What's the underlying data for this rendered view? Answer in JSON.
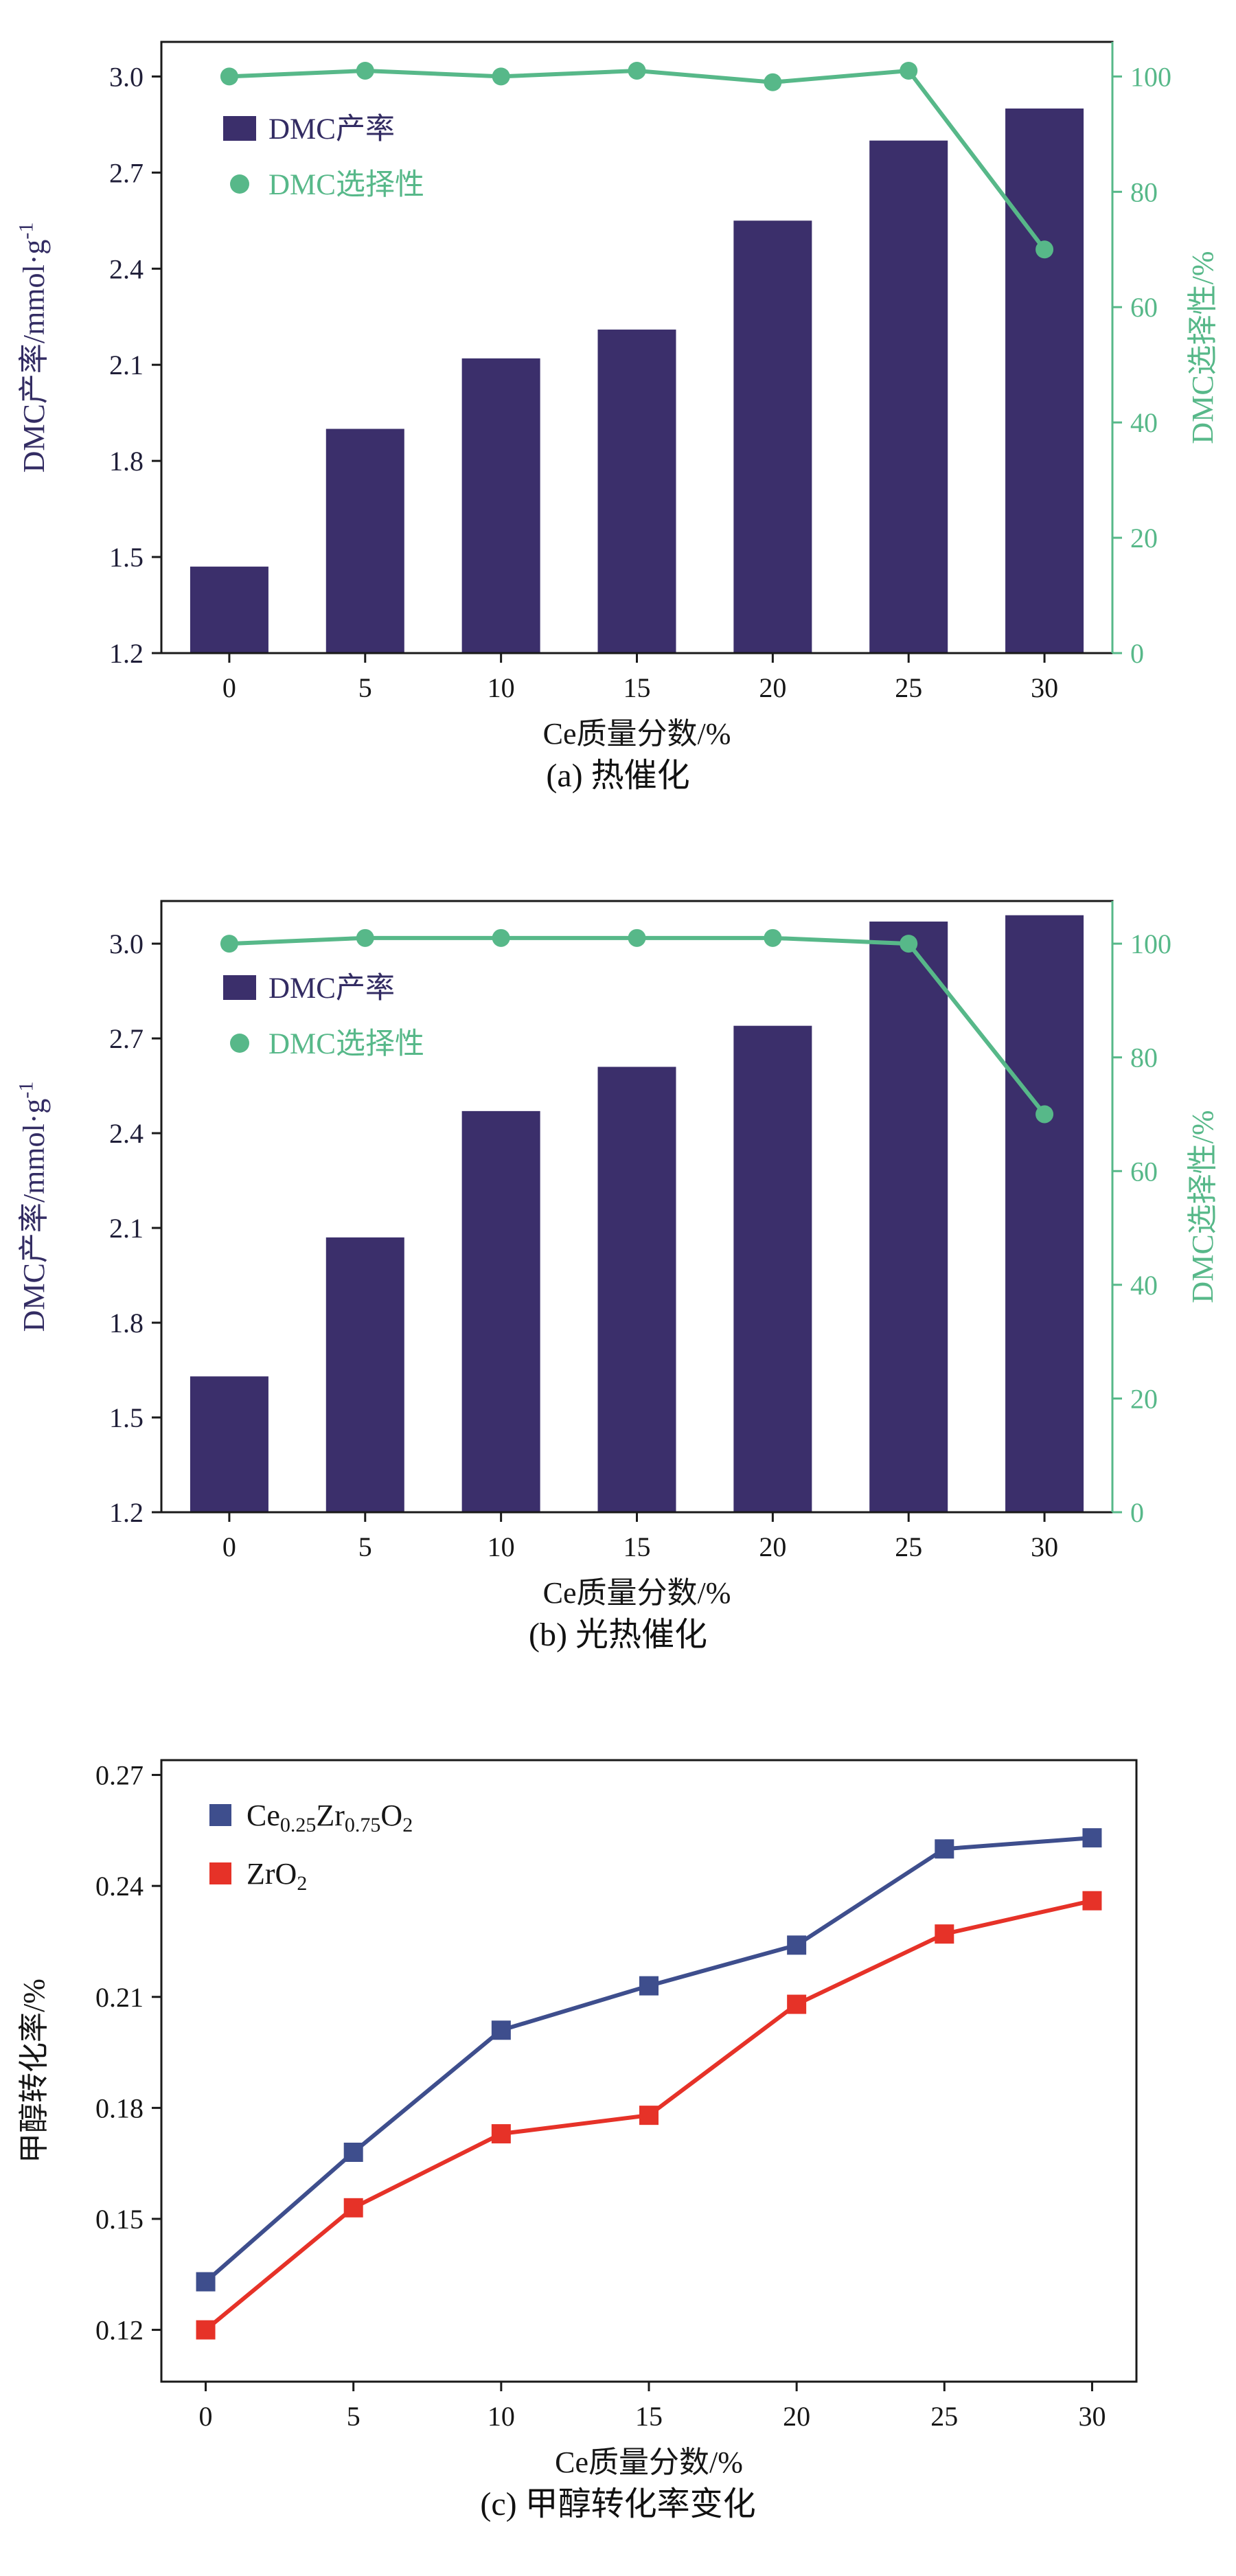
{
  "figure": {
    "background": "#ffffff"
  },
  "chart_data": [
    {
      "id": "a",
      "type": "bar",
      "caption": "(a) 热催化",
      "xlabel": "Ce质量分数/%",
      "categories": [
        0,
        5,
        10,
        15,
        20,
        25,
        30
      ],
      "left_axis": {
        "label": "DMC产率/mmol·g⁻¹",
        "label_parts": [
          {
            "t": "DMC产率/mmol·g"
          },
          {
            "t": "-1",
            "sup": true
          }
        ],
        "ticks": [
          1.2,
          1.5,
          1.8,
          2.1,
          2.4,
          2.7,
          3.0
        ],
        "lim": [
          1.2,
          3.108
        ],
        "tick_color": "#1f1e38",
        "label_color": "#332c63"
      },
      "right_axis": {
        "label": "DMC选择性/%",
        "ticks": [
          0,
          20,
          40,
          60,
          80,
          100
        ],
        "lim": [
          0,
          106
        ],
        "color": "#57b889"
      },
      "series": [
        {
          "name": "DMC产率",
          "type": "bar",
          "axis": "left",
          "color": "#3b2f6b",
          "values": [
            1.47,
            1.9,
            2.12,
            2.21,
            2.55,
            2.8,
            2.9
          ]
        },
        {
          "name": "DMC选择性",
          "type": "line",
          "axis": "right",
          "color": "#57b889",
          "values": [
            100,
            101,
            100,
            101,
            99,
            101,
            70
          ]
        }
      ]
    },
    {
      "id": "b",
      "type": "bar",
      "caption": "(b) 光热催化",
      "xlabel": "Ce质量分数/%",
      "categories": [
        0,
        5,
        10,
        15,
        20,
        25,
        30
      ],
      "left_axis": {
        "label": "DMC产率/mmol·g⁻¹",
        "label_parts": [
          {
            "t": "DMC产率/mmol·g"
          },
          {
            "t": "-1",
            "sup": true
          }
        ],
        "ticks": [
          1.2,
          1.5,
          1.8,
          2.1,
          2.4,
          2.7,
          3.0
        ],
        "lim": [
          1.2,
          3.135
        ],
        "tick_color": "#1f1e38",
        "label_color": "#332c63"
      },
      "right_axis": {
        "label": "DMC选择性/%",
        "ticks": [
          0,
          20,
          40,
          60,
          80,
          100
        ],
        "lim": [
          0,
          107.5
        ],
        "color": "#57b889"
      },
      "series": [
        {
          "name": "DMC产率",
          "type": "bar",
          "axis": "left",
          "color": "#3b2f6b",
          "values": [
            1.63,
            2.07,
            2.47,
            2.61,
            2.74,
            3.07,
            3.09
          ]
        },
        {
          "name": "DMC选择性",
          "type": "line",
          "axis": "right",
          "color": "#57b889",
          "values": [
            100,
            101,
            101,
            101,
            101,
            100,
            70
          ]
        }
      ]
    },
    {
      "id": "c",
      "type": "line",
      "caption": "(c) 甲醇转化率变化",
      "xlabel": "Ce质量分数/%",
      "ylabel": "甲醇转化率/%",
      "x": [
        0,
        5,
        10,
        15,
        20,
        25,
        30
      ],
      "series": [
        {
          "name": "Ce0.25Zr0.75O2",
          "label_parts": [
            {
              "t": "Ce"
            },
            {
              "t": "0.25",
              "sub": true
            },
            {
              "t": "Zr"
            },
            {
              "t": "0.75",
              "sub": true
            },
            {
              "t": "O"
            },
            {
              "t": "2",
              "sub": true
            }
          ],
          "color": "#3e4e8d",
          "marker": "square",
          "values": [
            0.133,
            0.168,
            0.201,
            0.213,
            0.224,
            0.25,
            0.253
          ]
        },
        {
          "name": "ZrO2",
          "label_parts": [
            {
              "t": "ZrO"
            },
            {
              "t": "2",
              "sub": true
            }
          ],
          "color": "#e63228",
          "marker": "square",
          "values": [
            0.12,
            0.153,
            0.173,
            0.178,
            0.208,
            0.227,
            0.236
          ]
        }
      ],
      "yticks": [
        0.12,
        0.15,
        0.18,
        0.21,
        0.24,
        0.27
      ],
      "ylim": [
        0.106,
        0.274
      ],
      "xticks": [
        0,
        5,
        10,
        15,
        20,
        25,
        30
      ],
      "xlim": [
        -1.5,
        31.5
      ],
      "legend_position": "top-left",
      "tick_color": "#161616"
    }
  ]
}
